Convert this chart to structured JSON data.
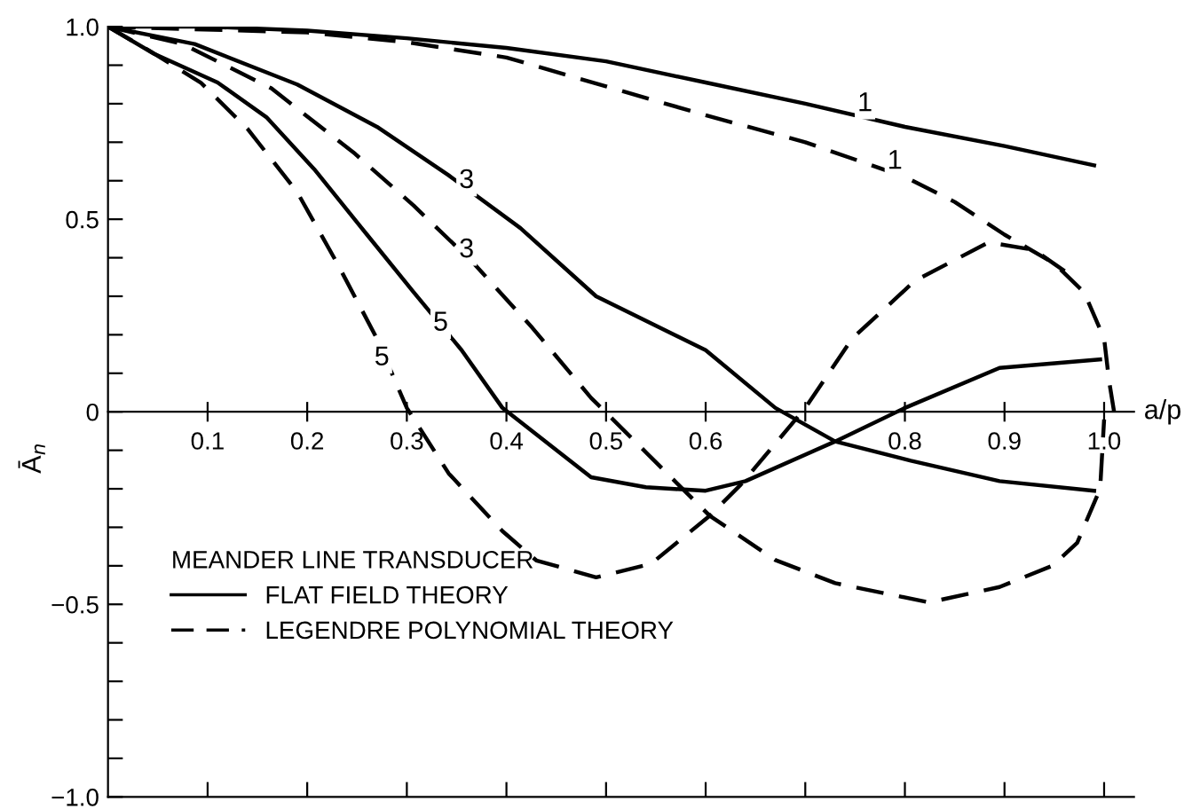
{
  "chart_data": {
    "type": "line",
    "xlabel": "a/p",
    "ylabel": "Ā$_{n}$",
    "legend_title": "MEANDER LINE TRANSDUCER",
    "xlim": [
      0,
      1.03
    ],
    "ylim": [
      -1.0,
      1.0
    ],
    "xticks": [
      0.1,
      0.2,
      0.3,
      0.4,
      0.5,
      0.6,
      {
        "value": 0.7,
        "label": null
      },
      0.8,
      0.9,
      {
        "value": 1.0,
        "label": "1.0"
      }
    ],
    "yticks": [
      {
        "value": -1.0,
        "label": "−1.0"
      },
      {
        "value": -0.9,
        "label": null
      },
      {
        "value": -0.8,
        "label": null
      },
      {
        "value": -0.7,
        "label": null
      },
      {
        "value": -0.6,
        "label": null
      },
      {
        "value": -0.5,
        "label": "−0.5"
      },
      {
        "value": -0.4,
        "label": null
      },
      {
        "value": -0.3,
        "label": null
      },
      {
        "value": -0.2,
        "label": null
      },
      {
        "value": -0.1,
        "label": null
      },
      0,
      {
        "value": 0.1,
        "label": null
      },
      {
        "value": 0.2,
        "label": null
      },
      {
        "value": 0.3,
        "label": null
      },
      {
        "value": 0.4,
        "label": null
      },
      0.5,
      {
        "value": 0.6,
        "label": null
      },
      {
        "value": 0.7,
        "label": null
      },
      {
        "value": 0.8,
        "label": null
      },
      {
        "value": 0.9,
        "label": null
      },
      {
        "value": 1.0,
        "label": "1.0"
      }
    ],
    "grid": false,
    "legend": "bottom left",
    "marker": "none",
    "series": [
      {
        "name": "FLAT FIELD THEORY",
        "color": "#000000",
        "line_style": "solid",
        "x": [
          0,
          0.1,
          0.2,
          0.3,
          0.4,
          0.5,
          0.6,
          0.7,
          0.8,
          0.9,
          0.99
        ],
        "values": [
          1.0,
          1.0,
          0.99,
          0.97,
          0.945,
          0.91,
          0.855,
          0.8,
          0.74,
          0.69,
          0.64
        ]
      },
      {
        "name": "LEGENDRE POLYNOMIAL THEORY",
        "color": "#000000",
        "line_style": "dashed",
        "x": [
          0,
          0.2,
          0.3,
          0.4,
          0.5,
          0.6,
          0.7,
          0.8,
          0.85,
          0.9,
          0.95,
          0.98,
          1.0,
          1.005,
          1.01
        ],
        "values": [
          1.0,
          0.985,
          0.96,
          0.92,
          0.845,
          0.77,
          0.7,
          0.61,
          0.545,
          0.46,
          0.385,
          0.31,
          0.19,
          0.08,
          0.0
        ]
      },
      {
        "color": "#000000",
        "line_style": "solid",
        "x": [
          0,
          0.087,
          0.19,
          0.27,
          0.342,
          0.414,
          0.49,
          0.6,
          0.67,
          0.73,
          0.806,
          0.895,
          0.99
        ],
        "values": [
          1.0,
          0.955,
          0.85,
          0.74,
          0.614,
          0.477,
          0.3,
          0.16,
          0.01,
          -0.077,
          -0.127,
          -0.18,
          -0.205
        ]
      },
      {
        "color": "#000000",
        "line_style": "dashed",
        "x": [
          0,
          0.075,
          0.164,
          0.248,
          0.307,
          0.367,
          0.426,
          0.485,
          0.503,
          0.604,
          0.67,
          0.73,
          0.824,
          0.895,
          0.948,
          0.973,
          0.996,
          1.0
        ],
        "values": [
          1.0,
          0.955,
          0.84,
          0.67,
          0.535,
          0.386,
          0.218,
          0.036,
          -0.01,
          -0.27,
          -0.385,
          -0.445,
          -0.495,
          -0.455,
          -0.4,
          -0.34,
          -0.2,
          -0.02
        ]
      },
      {
        "color": "#000000",
        "line_style": "solid",
        "x": [
          0,
          0.046,
          0.11,
          0.159,
          0.207,
          0.26,
          0.307,
          0.355,
          0.396,
          0.485,
          0.54,
          0.6,
          0.64,
          0.73,
          0.8,
          0.895,
          0.996
        ],
        "values": [
          1.0,
          0.93,
          0.855,
          0.765,
          0.63,
          0.46,
          0.31,
          0.16,
          0.01,
          -0.17,
          -0.196,
          -0.205,
          -0.18,
          -0.077,
          0.01,
          0.114,
          0.136
        ]
      },
      {
        "color": "#000000",
        "line_style": "dashed",
        "x": [
          0,
          0.04,
          0.093,
          0.14,
          0.19,
          0.23,
          0.27,
          0.3,
          0.342,
          0.396,
          0.43,
          0.49,
          0.545,
          0.604,
          0.635,
          0.7,
          0.747,
          0.81,
          0.884,
          0.93,
          0.966
        ],
        "values": [
          1.0,
          0.94,
          0.855,
          0.735,
          0.57,
          0.386,
          0.19,
          0.01,
          -0.16,
          -0.31,
          -0.386,
          -0.43,
          -0.395,
          -0.27,
          -0.19,
          0.01,
          0.19,
          0.34,
          0.44,
          0.42,
          0.355
        ]
      }
    ],
    "annotations": [
      {
        "text": "1",
        "x": 0.77,
        "y": 0.76
      },
      {
        "text": "1",
        "x": 0.8,
        "y": 0.61
      },
      {
        "text": "3",
        "x": 0.37,
        "y": 0.56
      },
      {
        "text": "3",
        "x": 0.37,
        "y": 0.38
      },
      {
        "text": "5",
        "x": 0.285,
        "y": 0.1
      },
      {
        "text": "5",
        "x": 0.344,
        "y": 0.19
      }
    ]
  }
}
